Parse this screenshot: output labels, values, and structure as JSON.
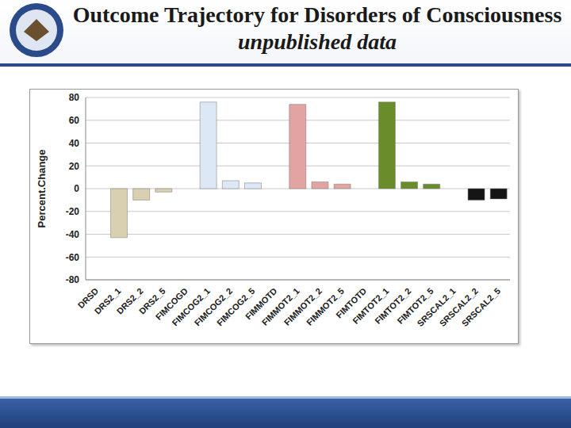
{
  "chart_data": {
    "type": "bar",
    "title": "Outcome Trajectory  for Disorders of Consciousness",
    "subtitle": "unpublished data",
    "y_label": "Percent.Change",
    "categories": [
      "DRSD",
      "DRS2_1",
      "DRS2_2",
      "DRS2_5",
      "FIMCOGD",
      "FIMCOG2_1",
      "FIMCOG2_2",
      "FIMCOG2_5",
      "FIMMOTD",
      "FIMMOT2_1",
      "FIMMOT2_2",
      "FIMMOT2_5",
      "FIMTOTD",
      "FIMTOT2_1",
      "FIMTOT2_2",
      "FIMTOT2_5",
      "SRSCAL2_1",
      "SRSCAL2_2",
      "SRSCAL2_5"
    ],
    "values": [
      null,
      -43,
      -10,
      -3,
      null,
      76,
      7,
      5,
      null,
      74,
      6,
      4,
      null,
      76,
      6,
      4,
      null,
      -10,
      -9
    ],
    "colors": [
      "#d8d0b0",
      "#d8d0b0",
      "#d8d0b0",
      "#d8d0b0",
      "#dce8f6",
      "#dce8f6",
      "#dce8f6",
      "#dce8f6",
      "#e2a3a3",
      "#e2a3a3",
      "#e2a3a3",
      "#e2a3a3",
      "#6a8c2a",
      "#6a8c2a",
      "#6a8c2a",
      "#6a8c2a",
      "#151515",
      "#151515",
      "#151515"
    ],
    "ylim": [
      -80,
      80
    ],
    "yticks": [
      -80,
      -60,
      -40,
      -20,
      0,
      20,
      40,
      60,
      80
    ],
    "grid": true
  }
}
